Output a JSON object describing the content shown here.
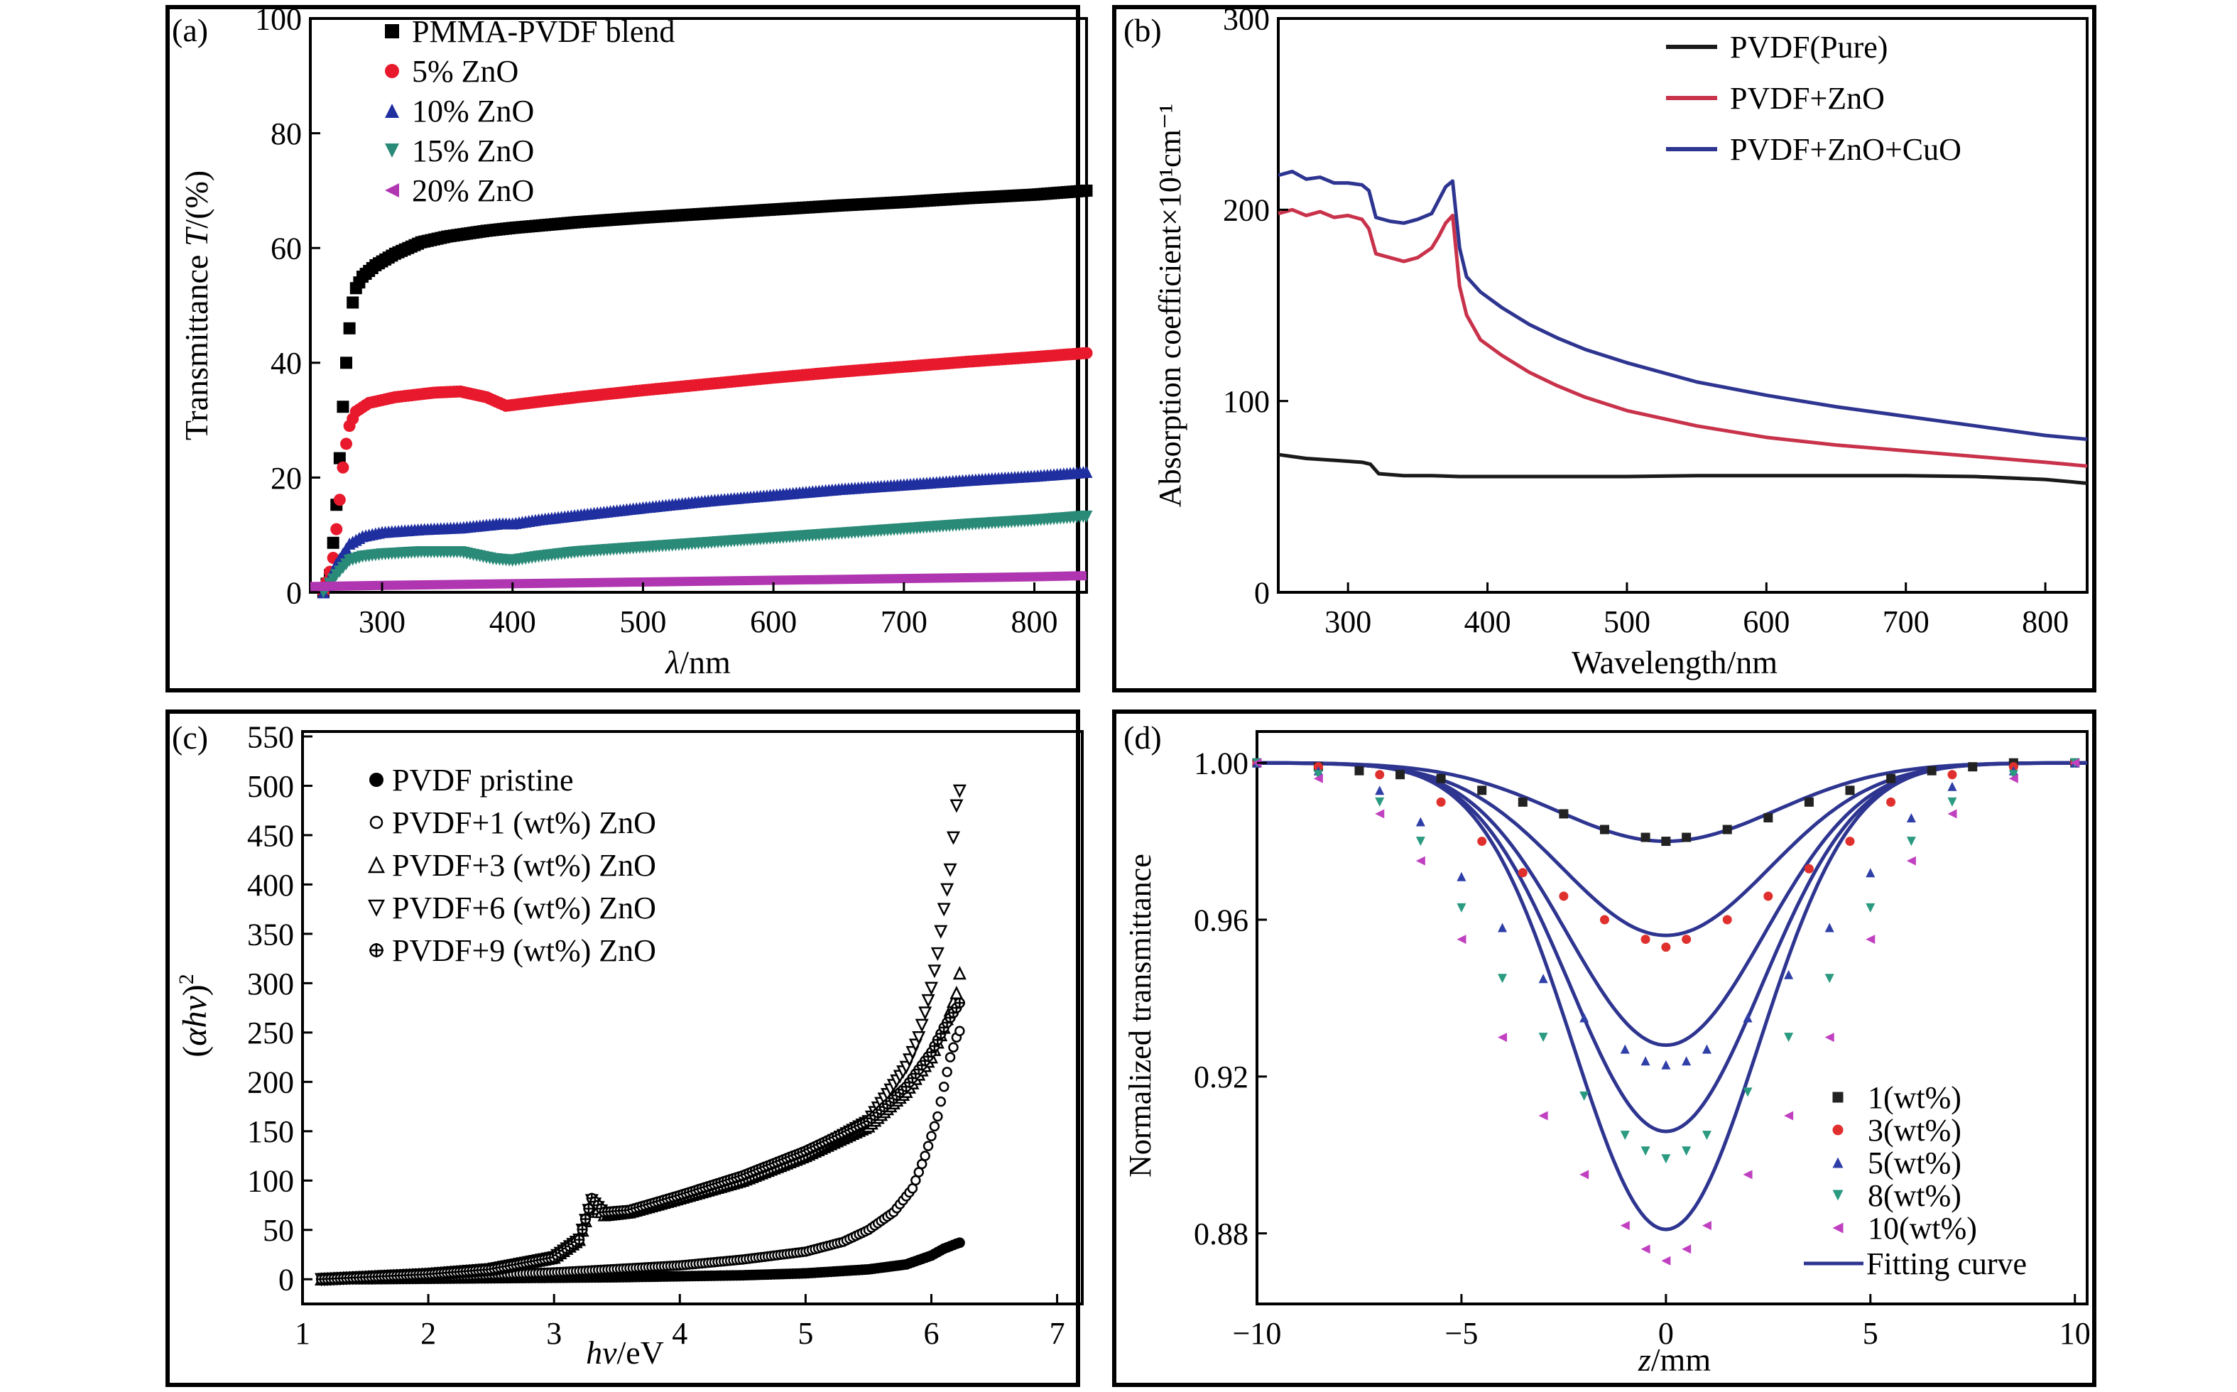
{
  "chart_data": [
    {
      "panel_label": "(a)",
      "type": "scatter",
      "xlabel_symbol": "λ",
      "xlabel_unit": "/nm",
      "ylabel_text": "Transmittance ",
      "ylabel_symbol": "T",
      "ylabel_unit": "/(%)",
      "xlim": [
        245,
        840
      ],
      "ylim": [
        0,
        100
      ],
      "xticks": [
        300,
        400,
        500,
        600,
        700,
        800
      ],
      "yticks": [
        0,
        20,
        40,
        60,
        80,
        100
      ],
      "legend_position": "top-left",
      "series": [
        {
          "name": "PMMA-PVDF blend",
          "marker": "square",
          "color": "#000000",
          "x": [
            255,
            260,
            264,
            268,
            271,
            274,
            277,
            280,
            285,
            295,
            310,
            330,
            350,
            380,
            400,
            450,
            500,
            550,
            600,
            650,
            700,
            750,
            800,
            840
          ],
          "y": [
            0,
            3,
            12,
            25,
            36,
            44,
            50,
            53,
            55,
            57,
            59,
            61,
            62,
            63,
            63.5,
            64.5,
            65.3,
            66,
            66.7,
            67.4,
            68,
            68.7,
            69.3,
            70
          ]
        },
        {
          "name": "5% ZnO",
          "marker": "circle",
          "color": "#e8192c",
          "x": [
            255,
            262,
            267,
            271,
            275,
            280,
            290,
            310,
            340,
            360,
            380,
            395,
            420,
            450,
            500,
            550,
            600,
            650,
            700,
            750,
            800,
            840
          ],
          "y": [
            0,
            5,
            15,
            24,
            29,
            31.5,
            33,
            34,
            34.8,
            35,
            34,
            32.5,
            33.2,
            34,
            35.2,
            36.3,
            37.4,
            38.4,
            39.3,
            40.2,
            41,
            41.7
          ]
        },
        {
          "name": "10% ZnO",
          "marker": "triangle-up",
          "color": "#1f2fa0",
          "x": [
            255,
            265,
            275,
            285,
            300,
            330,
            360,
            390,
            400,
            420,
            450,
            500,
            550,
            600,
            650,
            700,
            750,
            800,
            840
          ],
          "y": [
            0,
            5,
            8.5,
            9.8,
            10.5,
            11,
            11.3,
            12,
            12,
            12.7,
            13.5,
            14.8,
            16,
            17,
            18,
            18.8,
            19.6,
            20.3,
            21
          ]
        },
        {
          "name": "15% ZnO",
          "marker": "triangle-down",
          "color": "#2a8a78",
          "x": [
            255,
            265,
            275,
            285,
            300,
            330,
            360,
            385,
            400,
            420,
            450,
            500,
            550,
            600,
            650,
            700,
            750,
            800,
            840
          ],
          "y": [
            0,
            3,
            5.5,
            6.2,
            6.6,
            7,
            7,
            5.8,
            5.5,
            6.2,
            7,
            7.8,
            8.6,
            9.4,
            10.2,
            11,
            11.8,
            12.5,
            13.2
          ]
        },
        {
          "name": "20% ZnO",
          "marker": "triangle-left",
          "color": "#b035b0",
          "x": [
            245,
            300,
            400,
            500,
            600,
            700,
            800,
            840
          ],
          "y": [
            1,
            1.2,
            1.5,
            1.8,
            2.1,
            2.4,
            2.7,
            2.9
          ]
        }
      ]
    },
    {
      "panel_label": "(b)",
      "type": "line",
      "xlabel": "Wavelength/nm",
      "ylabel": "Absorption coefficient×10¹cm⁻¹",
      "xlim": [
        250,
        830
      ],
      "ylim": [
        0,
        300
      ],
      "xticks": [
        300,
        400,
        500,
        600,
        700,
        800
      ],
      "yticks": [
        0,
        100,
        200,
        300
      ],
      "legend_position": "top-right",
      "series": [
        {
          "name": "PVDF(Pure)",
          "color": "#1a1a1a",
          "x": [
            250,
            270,
            290,
            310,
            316,
            322,
            340,
            360,
            380,
            400,
            450,
            500,
            550,
            600,
            650,
            700,
            750,
            800,
            830
          ],
          "y": [
            72,
            70,
            69,
            68,
            67,
            62,
            61,
            61,
            60.5,
            60.5,
            60.5,
            60.5,
            61,
            61,
            61,
            61,
            60.5,
            59,
            57
          ]
        },
        {
          "name": "PVDF+ZnO",
          "color": "#c8324a",
          "x": [
            250,
            260,
            270,
            280,
            290,
            300,
            310,
            315,
            320,
            330,
            340,
            350,
            360,
            365,
            370,
            375,
            380,
            385,
            395,
            410,
            430,
            450,
            470,
            500,
            550,
            600,
            650,
            700,
            750,
            800,
            830
          ],
          "y": [
            198,
            200,
            197,
            199,
            196,
            197,
            195,
            190,
            177,
            175,
            173,
            175,
            180,
            186,
            193,
            197,
            160,
            145,
            132,
            124,
            115,
            108,
            102,
            95,
            87,
            81,
            77,
            74,
            71,
            68,
            66
          ]
        },
        {
          "name": "PVDF+ZnO+CuO",
          "color": "#2e3590",
          "x": [
            250,
            260,
            270,
            280,
            290,
            300,
            310,
            315,
            320,
            330,
            340,
            350,
            360,
            365,
            370,
            375,
            380,
            385,
            395,
            410,
            430,
            450,
            470,
            500,
            550,
            600,
            650,
            700,
            750,
            800,
            830
          ],
          "y": [
            218,
            220,
            216,
            217,
            214,
            214,
            213,
            210,
            196,
            194,
            193,
            195,
            198,
            205,
            212,
            215,
            180,
            165,
            157,
            149,
            140,
            133,
            127,
            120,
            110,
            103,
            97,
            92,
            87,
            82,
            80
          ]
        }
      ]
    },
    {
      "panel_label": "(c)",
      "type": "scatter",
      "xlabel_symbol": "hv",
      "xlabel_unit": "/eV",
      "ylabel_open": "(",
      "ylabel_symbol": "αhv",
      "ylabel_close": ")",
      "ylabel_sup": "2",
      "xlim": [
        1,
        7.2
      ],
      "ylim": [
        -25,
        555
      ],
      "xticks": [
        1,
        2,
        3,
        4,
        5,
        6,
        7
      ],
      "yticks": [
        0,
        50,
        100,
        150,
        200,
        250,
        300,
        350,
        400,
        450,
        500,
        550
      ],
      "legend_position": "top-left",
      "series": [
        {
          "name": "PVDF pristine",
          "marker": "filled-circle",
          "color": "#000000",
          "x": [
            1.15,
            1.5,
            2.0,
            2.5,
            3.0,
            3.5,
            4.0,
            4.5,
            5.0,
            5.5,
            5.8,
            6.0,
            6.1,
            6.2,
            6.25
          ],
          "y": [
            0,
            0,
            0.5,
            1,
            1.5,
            2,
            3,
            4,
            6,
            10,
            15,
            24,
            31,
            36,
            38
          ]
        },
        {
          "name": "PVDF+1 (wt%) ZnO",
          "marker": "open-circle",
          "color": "#000000",
          "x": [
            1.15,
            2.0,
            3.0,
            3.3,
            4.0,
            4.5,
            5.0,
            5.3,
            5.5,
            5.7,
            5.85,
            5.95,
            6.05,
            6.1,
            6.15,
            6.2,
            6.25
          ],
          "y": [
            0,
            2,
            7,
            9,
            14,
            20,
            28,
            38,
            50,
            68,
            92,
            125,
            165,
            195,
            225,
            245,
            258
          ]
        },
        {
          "name": "PVDF+3 (wt%) ZnO",
          "marker": "open-triangle-up",
          "color": "#000000",
          "x": [
            1.15,
            2.0,
            2.5,
            3.0,
            3.2,
            3.3,
            3.4,
            3.6,
            4.0,
            4.5,
            5.0,
            5.5,
            5.8,
            6.0,
            6.1,
            6.2,
            6.25
          ],
          "y": [
            0,
            5,
            10,
            22,
            40,
            78,
            65,
            68,
            82,
            100,
            125,
            155,
            190,
            225,
            255,
            290,
            330
          ]
        },
        {
          "name": "PVDF+6 (wt%) ZnO",
          "marker": "open-triangle-down",
          "color": "#000000",
          "x": [
            1.15,
            2.0,
            2.5,
            3.0,
            3.2,
            3.3,
            3.4,
            3.6,
            4.0,
            4.5,
            5.0,
            5.5,
            5.8,
            5.9,
            6.0,
            6.05,
            6.1,
            6.15,
            6.2,
            6.25
          ],
          "y": [
            0,
            5,
            10,
            22,
            40,
            80,
            66,
            68,
            82,
            100,
            125,
            160,
            215,
            245,
            295,
            330,
            375,
            415,
            480,
            510
          ]
        },
        {
          "name": "PVDF+9 (wt%) ZnO",
          "marker": "crossed-circle",
          "color": "#000000",
          "x": [
            1.15,
            2.0,
            2.5,
            3.0,
            3.2,
            3.3,
            3.4,
            3.6,
            4.0,
            4.5,
            5.0,
            5.5,
            5.8,
            6.0,
            6.1,
            6.2,
            6.25
          ],
          "y": [
            0,
            5,
            10,
            22,
            40,
            82,
            68,
            70,
            85,
            105,
            130,
            160,
            195,
            230,
            255,
            275,
            285
          ]
        }
      ]
    },
    {
      "panel_label": "(d)",
      "type": "scatter",
      "xlabel_symbol": "z",
      "xlabel_unit": "/mm",
      "ylabel": "Normalized transmittance",
      "xlim": [
        -10,
        10.3
      ],
      "ylim": [
        0.862,
        1.008
      ],
      "xticks": [
        -10,
        -5,
        0,
        5,
        10
      ],
      "xtick_labels": [
        "−10",
        "−5",
        "0",
        "5",
        "10"
      ],
      "yticks": [
        0.88,
        0.92,
        0.96,
        1.0
      ],
      "ytick_labels": [
        "0.88",
        "0.92",
        "0.96",
        "1.00"
      ],
      "legend_position": "bottom-right",
      "fit_label": "Fitting curve",
      "fit_color": "#2e3590",
      "series": [
        {
          "name": "1(wt%)",
          "color": "#222222",
          "marker": "square",
          "x": [
            -10,
            -8.5,
            -7.5,
            -6.5,
            -5.5,
            -4.5,
            -3.5,
            -2.5,
            -1.5,
            -0.5,
            0,
            0.5,
            1.5,
            2.5,
            3.5,
            4.5,
            5.5,
            6.5,
            7.5,
            8.5,
            10
          ],
          "y": [
            1.0,
            0.999,
            0.998,
            0.997,
            0.996,
            0.993,
            0.99,
            0.987,
            0.983,
            0.981,
            0.98,
            0.981,
            0.983,
            0.986,
            0.99,
            0.993,
            0.996,
            0.998,
            0.999,
            1.0,
            1.0
          ],
          "fit_min": 0.98,
          "fit_width": 3.8
        },
        {
          "name": "3(wt%)",
          "color": "#e0302e",
          "marker": "circle",
          "x": [
            -10,
            -8.5,
            -7,
            -5.5,
            -4.5,
            -3.5,
            -2.5,
            -1.5,
            -0.5,
            0,
            0.5,
            1.5,
            2.5,
            3.5,
            4.5,
            5.5,
            7,
            8.5,
            10
          ],
          "y": [
            1.0,
            0.999,
            0.997,
            0.99,
            0.98,
            0.972,
            0.966,
            0.96,
            0.955,
            0.953,
            0.955,
            0.96,
            0.966,
            0.973,
            0.98,
            0.99,
            0.997,
            0.999,
            1.0
          ],
          "fit_min": 0.956,
          "fit_width": 3.6
        },
        {
          "name": "5(wt%)",
          "color": "#2f3fa8",
          "marker": "triangle-up",
          "x": [
            -10,
            -8.5,
            -7,
            -6,
            -5,
            -4,
            -3,
            -2,
            -1,
            -0.5,
            0,
            0.5,
            1,
            2,
            3,
            4,
            5,
            6,
            7,
            8.5,
            10
          ],
          "y": [
            1.0,
            0.998,
            0.993,
            0.985,
            0.971,
            0.958,
            0.945,
            0.935,
            0.927,
            0.924,
            0.923,
            0.924,
            0.927,
            0.935,
            0.946,
            0.958,
            0.972,
            0.986,
            0.994,
            0.998,
            1.0
          ],
          "fit_min": 0.928,
          "fit_width": 3.4
        },
        {
          "name": "8(wt%)",
          "color": "#2a9a80",
          "marker": "triangle-down",
          "x": [
            -10,
            -8.5,
            -7,
            -6,
            -5,
            -4,
            -3,
            -2,
            -1,
            -0.5,
            0,
            0.5,
            1,
            2,
            3,
            4,
            5,
            6,
            7,
            8.5,
            10
          ],
          "y": [
            1.0,
            0.997,
            0.99,
            0.98,
            0.963,
            0.945,
            0.93,
            0.915,
            0.905,
            0.901,
            0.899,
            0.901,
            0.905,
            0.916,
            0.93,
            0.945,
            0.963,
            0.98,
            0.99,
            0.997,
            1.0
          ],
          "fit_min": 0.906,
          "fit_width": 3.3
        },
        {
          "name": "10(wt%)",
          "color": "#c040c0",
          "marker": "triangle-left",
          "x": [
            -10,
            -8.5,
            -7,
            -6,
            -5,
            -4,
            -3,
            -2,
            -1,
            -0.5,
            0,
            0.5,
            1,
            2,
            3,
            4,
            5,
            6,
            7,
            8.5,
            10
          ],
          "y": [
            1.0,
            0.996,
            0.987,
            0.975,
            0.955,
            0.93,
            0.91,
            0.895,
            0.882,
            0.876,
            0.873,
            0.876,
            0.882,
            0.895,
            0.91,
            0.93,
            0.955,
            0.975,
            0.987,
            0.996,
            1.0
          ],
          "fit_min": 0.881,
          "fit_width": 3.2
        }
      ]
    }
  ]
}
